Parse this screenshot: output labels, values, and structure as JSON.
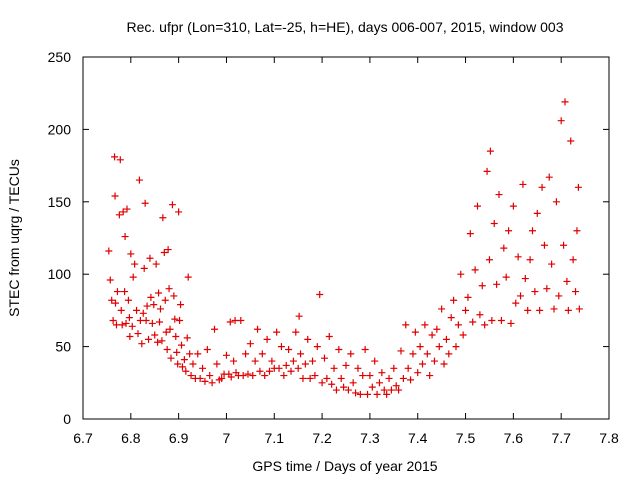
{
  "chart_data": {
    "type": "scatter",
    "title": "Rec. ufpr (Lon=310, Lat=-25, h=HE), days 006-007, 2015, window 003",
    "xlabel": "GPS time / Days of year 2015",
    "ylabel": "STEC from uqrg / TECUs",
    "xlim": [
      6.7,
      7.8
    ],
    "ylim": [
      0,
      250
    ],
    "x_ticks": [
      "6.7",
      "6.8",
      "6.9",
      "7",
      "7.1",
      "7.2",
      "7.3",
      "7.4",
      "7.5",
      "7.6",
      "7.7",
      "7.8"
    ],
    "y_ticks": [
      "0",
      "50",
      "100",
      "150",
      "200",
      "250"
    ],
    "grid": false,
    "marker": "+",
    "color": "#e00000",
    "series": [
      {
        "points": [
          [
            6.754,
            116
          ],
          [
            6.757,
            96
          ],
          [
            6.76,
            82
          ],
          [
            6.763,
            68
          ],
          [
            6.766,
            181
          ],
          [
            6.767,
            154
          ],
          [
            6.768,
            80
          ],
          [
            6.77,
            65
          ],
          [
            6.772,
            88
          ],
          [
            6.776,
            141
          ],
          [
            6.778,
            179
          ],
          [
            6.78,
            75
          ],
          [
            6.782,
            65
          ],
          [
            6.784,
            143
          ],
          [
            6.787,
            88
          ],
          [
            6.788,
            126
          ],
          [
            6.79,
            66
          ],
          [
            6.792,
            145
          ],
          [
            6.795,
            82
          ],
          [
            6.797,
            70
          ],
          [
            6.798,
            57
          ],
          [
            6.8,
            114
          ],
          [
            6.803,
            64
          ],
          [
            6.805,
            98
          ],
          [
            6.808,
            107
          ],
          [
            6.812,
            75
          ],
          [
            6.815,
            59
          ],
          [
            6.818,
            165
          ],
          [
            6.82,
            68
          ],
          [
            6.823,
            52
          ],
          [
            6.826,
            73
          ],
          [
            6.828,
            104
          ],
          [
            6.83,
            149
          ],
          [
            6.832,
            68
          ],
          [
            6.834,
            78
          ],
          [
            6.837,
            55
          ],
          [
            6.84,
            111
          ],
          [
            6.842,
            84
          ],
          [
            6.845,
            66
          ],
          [
            6.848,
            79
          ],
          [
            6.85,
            58
          ],
          [
            6.853,
            107
          ],
          [
            6.856,
            53
          ],
          [
            6.858,
            87
          ],
          [
            6.86,
            67
          ],
          [
            6.862,
            76
          ],
          [
            6.865,
            54
          ],
          [
            6.867,
            139
          ],
          [
            6.87,
            115
          ],
          [
            6.872,
            82
          ],
          [
            6.874,
            60
          ],
          [
            6.876,
            48
          ],
          [
            6.878,
            117
          ],
          [
            6.88,
            90
          ],
          [
            6.882,
            62
          ],
          [
            6.884,
            42
          ],
          [
            6.887,
            148
          ],
          [
            6.89,
            85
          ],
          [
            6.892,
            69
          ],
          [
            6.894,
            57
          ],
          [
            6.896,
            46
          ],
          [
            6.898,
            38
          ],
          [
            6.9,
            143
          ],
          [
            6.902,
            68
          ],
          [
            6.904,
            79
          ],
          [
            6.906,
            51
          ],
          [
            6.908,
            36
          ],
          [
            6.912,
            41
          ],
          [
            6.915,
            33
          ],
          [
            6.918,
            56
          ],
          [
            6.92,
            98
          ],
          [
            6.923,
            45
          ],
          [
            6.926,
            30
          ],
          [
            6.93,
            38
          ],
          [
            6.935,
            28
          ],
          [
            6.94,
            45
          ],
          [
            6.945,
            28
          ],
          [
            6.95,
            35
          ],
          [
            6.955,
            26
          ],
          [
            6.96,
            48
          ],
          [
            6.965,
            30
          ],
          [
            6.97,
            25
          ],
          [
            6.975,
            62
          ],
          [
            6.98,
            38
          ],
          [
            6.985,
            27
          ],
          [
            6.99,
            28
          ],
          [
            6.995,
            31
          ],
          [
            7.0,
            44
          ],
          [
            7.005,
            31
          ],
          [
            7.008,
            67
          ],
          [
            7.01,
            29
          ],
          [
            7.015,
            40
          ],
          [
            7.018,
            68
          ],
          [
            7.02,
            32
          ],
          [
            7.025,
            30
          ],
          [
            7.03,
            68
          ],
          [
            7.035,
            30
          ],
          [
            7.04,
            45
          ],
          [
            7.045,
            31
          ],
          [
            7.05,
            52
          ],
          [
            7.055,
            30
          ],
          [
            7.06,
            40
          ],
          [
            7.065,
            62
          ],
          [
            7.07,
            33
          ],
          [
            7.075,
            45
          ],
          [
            7.08,
            30
          ],
          [
            7.085,
            55
          ],
          [
            7.09,
            33
          ],
          [
            7.095,
            40
          ],
          [
            7.1,
            35
          ],
          [
            7.105,
            60
          ],
          [
            7.11,
            35
          ],
          [
            7.115,
            50
          ],
          [
            7.12,
            30
          ],
          [
            7.125,
            37
          ],
          [
            7.13,
            48
          ],
          [
            7.135,
            33
          ],
          [
            7.14,
            40
          ],
          [
            7.145,
            60
          ],
          [
            7.15,
            35
          ],
          [
            7.152,
            71
          ],
          [
            7.155,
            45
          ],
          [
            7.16,
            28
          ],
          [
            7.165,
            38
          ],
          [
            7.17,
            55
          ],
          [
            7.175,
            28
          ],
          [
            7.18,
            40
          ],
          [
            7.185,
            30
          ],
          [
            7.19,
            50
          ],
          [
            7.195,
            86
          ],
          [
            7.2,
            25
          ],
          [
            7.205,
            42
          ],
          [
            7.21,
            28
          ],
          [
            7.215,
            57
          ],
          [
            7.22,
            24
          ],
          [
            7.225,
            35
          ],
          [
            7.23,
            20
          ],
          [
            7.235,
            48
          ],
          [
            7.24,
            28
          ],
          [
            7.245,
            22
          ],
          [
            7.25,
            37
          ],
          [
            7.255,
            20
          ],
          [
            7.26,
            45
          ],
          [
            7.265,
            25
          ],
          [
            7.27,
            18
          ],
          [
            7.275,
            35
          ],
          [
            7.28,
            17
          ],
          [
            7.285,
            30
          ],
          [
            7.29,
            48
          ],
          [
            7.295,
            17
          ],
          [
            7.3,
            30
          ],
          [
            7.305,
            22
          ],
          [
            7.31,
            40
          ],
          [
            7.315,
            17
          ],
          [
            7.32,
            25
          ],
          [
            7.325,
            32
          ],
          [
            7.33,
            20
          ],
          [
            7.335,
            17
          ],
          [
            7.34,
            28
          ],
          [
            7.345,
            20
          ],
          [
            7.35,
            35
          ],
          [
            7.355,
            23
          ],
          [
            7.36,
            20
          ],
          [
            7.365,
            47
          ],
          [
            7.37,
            28
          ],
          [
            7.375,
            65
          ],
          [
            7.38,
            35
          ],
          [
            7.385,
            27
          ],
          [
            7.39,
            45
          ],
          [
            7.395,
            60
          ],
          [
            7.4,
            32
          ],
          [
            7.405,
            50
          ],
          [
            7.41,
            38
          ],
          [
            7.415,
            65
          ],
          [
            7.42,
            45
          ],
          [
            7.425,
            30
          ],
          [
            7.43,
            58
          ],
          [
            7.435,
            40
          ],
          [
            7.44,
            62
          ],
          [
            7.445,
            50
          ],
          [
            7.45,
            76
          ],
          [
            7.455,
            38
          ],
          [
            7.46,
            55
          ],
          [
            7.465,
            45
          ],
          [
            7.47,
            70
          ],
          [
            7.475,
            82
          ],
          [
            7.48,
            50
          ],
          [
            7.485,
            65
          ],
          [
            7.49,
            100
          ],
          [
            7.495,
            58
          ],
          [
            7.5,
            75
          ],
          [
            7.505,
            84
          ],
          [
            7.51,
            128
          ],
          [
            7.515,
            67
          ],
          [
            7.52,
            103
          ],
          [
            7.525,
            147
          ],
          [
            7.53,
            72
          ],
          [
            7.535,
            92
          ],
          [
            7.54,
            65
          ],
          [
            7.545,
            171
          ],
          [
            7.55,
            110
          ],
          [
            7.552,
            185
          ],
          [
            7.555,
            68
          ],
          [
            7.56,
            135
          ],
          [
            7.565,
            93
          ],
          [
            7.57,
            155
          ],
          [
            7.575,
            68
          ],
          [
            7.58,
            118
          ],
          [
            7.585,
            98
          ],
          [
            7.59,
            130
          ],
          [
            7.595,
            66
          ],
          [
            7.6,
            147
          ],
          [
            7.605,
            80
          ],
          [
            7.61,
            112
          ],
          [
            7.615,
            85
          ],
          [
            7.62,
            162
          ],
          [
            7.625,
            97
          ],
          [
            7.63,
            75
          ],
          [
            7.635,
            110
          ],
          [
            7.64,
            130
          ],
          [
            7.645,
            88
          ],
          [
            7.65,
            142
          ],
          [
            7.655,
            75
          ],
          [
            7.66,
            160
          ],
          [
            7.665,
            120
          ],
          [
            7.67,
            90
          ],
          [
            7.675,
            167
          ],
          [
            7.68,
            107
          ],
          [
            7.685,
            76
          ],
          [
            7.69,
            150
          ],
          [
            7.695,
            85
          ],
          [
            7.7,
            206
          ],
          [
            7.705,
            120
          ],
          [
            7.708,
            219
          ],
          [
            7.712,
            95
          ],
          [
            7.715,
            75
          ],
          [
            7.72,
            192
          ],
          [
            7.725,
            110
          ],
          [
            7.73,
            88
          ],
          [
            7.733,
            130
          ],
          [
            7.736,
            160
          ],
          [
            7.738,
            76
          ]
        ]
      }
    ]
  }
}
